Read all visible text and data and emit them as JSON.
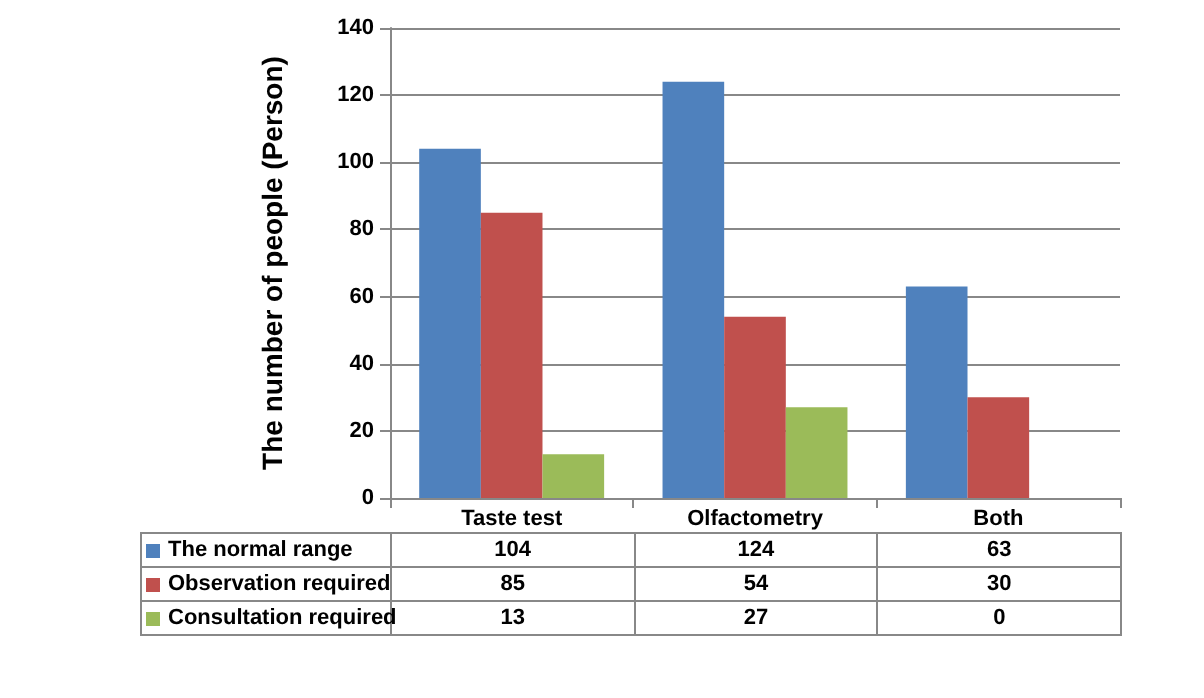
{
  "chart_data": {
    "type": "bar",
    "ylabel": "The number of people (Person)",
    "categories": [
      "Taste test",
      "Olfactometry",
      "Both"
    ],
    "series": [
      {
        "name": "The normal range",
        "color": "#4f81bd",
        "values": [
          104,
          124,
          63
        ]
      },
      {
        "name": "Observation required",
        "color": "#c0504d",
        "values": [
          85,
          54,
          30
        ]
      },
      {
        "name": "Consultation required",
        "color": "#9bbb59",
        "values": [
          13,
          27,
          0
        ]
      }
    ],
    "ylim": [
      0,
      140
    ],
    "yticks": [
      0,
      20,
      40,
      60,
      80,
      100,
      120,
      140
    ],
    "grid": "y",
    "data_labels": true,
    "legend": "bottom"
  }
}
